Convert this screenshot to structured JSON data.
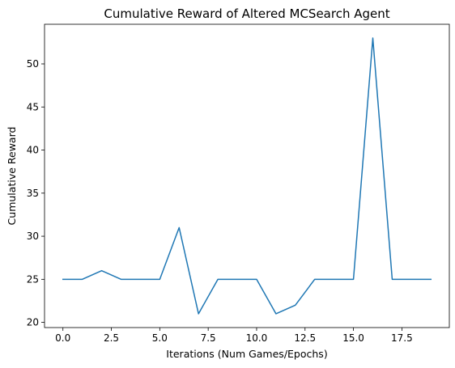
{
  "chart_data": {
    "type": "line",
    "title": "Cumulative Reward of Altered MCSearch Agent",
    "xlabel": "Iterations (Num Games/Epochs)",
    "ylabel": "Cumulative Reward",
    "x": [
      0,
      1,
      2,
      3,
      4,
      5,
      6,
      7,
      8,
      9,
      10,
      11,
      12,
      13,
      14,
      15,
      16,
      17,
      18,
      19
    ],
    "series": [
      {
        "values": [
          25,
          25,
          26,
          25,
          25,
          25,
          31,
          21,
          25,
          25,
          25,
          21,
          22,
          25,
          25,
          25,
          53,
          25,
          25,
          25
        ],
        "color": "#1f77b4"
      }
    ],
    "xlim": [
      -0.95,
      19.95
    ],
    "ylim": [
      19.4,
      54.6
    ],
    "xticks": [
      0.0,
      2.5,
      5.0,
      7.5,
      10.0,
      12.5,
      15.0,
      17.5
    ],
    "xtick_labels": [
      "0.0",
      "2.5",
      "5.0",
      "7.5",
      "10.0",
      "12.5",
      "15.0",
      "17.5"
    ],
    "yticks": [
      20,
      25,
      30,
      35,
      40,
      45,
      50
    ],
    "ytick_labels": [
      "20",
      "25",
      "30",
      "35",
      "40",
      "45",
      "50"
    ],
    "grid": false,
    "legend": false
  }
}
